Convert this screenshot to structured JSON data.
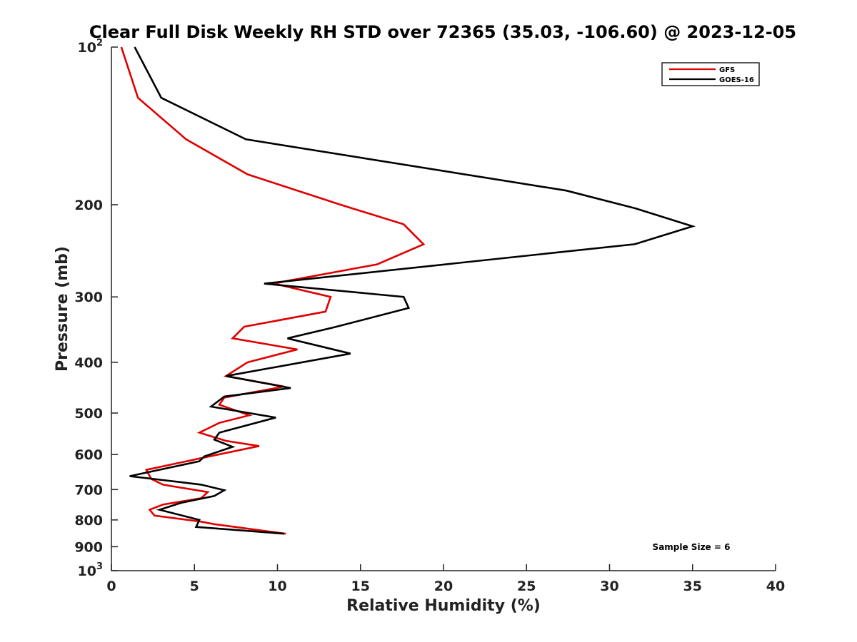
{
  "chart_data": {
    "type": "line",
    "title": "Clear Full Disk Weekly RH STD over 72365 (35.03, -106.60) @ 2023-12-05",
    "xlabel": "Relative Humidity (%)",
    "ylabel": "Pressure (mb)",
    "xlim": [
      0,
      40
    ],
    "ylim": [
      100,
      1000
    ],
    "yscale": "log",
    "y_reversed": true,
    "grid": false,
    "legend_position": "top-right",
    "annotation": "Sample Size = 6",
    "x_ticks": [
      "0",
      "5",
      "10",
      "15",
      "20",
      "25",
      "30",
      "35",
      "40"
    ],
    "y_ticks": [
      {
        "value": 100,
        "label": "10",
        "sup": "2"
      },
      {
        "value": 200,
        "label": "200",
        "sup": ""
      },
      {
        "value": 300,
        "label": "300",
        "sup": ""
      },
      {
        "value": 400,
        "label": "400",
        "sup": ""
      },
      {
        "value": 500,
        "label": "500",
        "sup": ""
      },
      {
        "value": 600,
        "label": "600",
        "sup": ""
      },
      {
        "value": 700,
        "label": "700",
        "sup": ""
      },
      {
        "value": 800,
        "label": "800",
        "sup": ""
      },
      {
        "value": 900,
        "label": "900",
        "sup": ""
      },
      {
        "value": 1000,
        "label": "10",
        "sup": "3"
      }
    ],
    "series": [
      {
        "name": "GFS",
        "color": "#e00000",
        "points": [
          [
            0.6,
            100
          ],
          [
            1.6,
            125
          ],
          [
            4.5,
            150
          ],
          [
            8.2,
            175
          ],
          [
            13.8,
            200
          ],
          [
            17.6,
            218
          ],
          [
            18.8,
            238
          ],
          [
            16.0,
            260
          ],
          [
            10.5,
            280
          ],
          [
            9.8,
            283
          ],
          [
            13.2,
            300
          ],
          [
            12.9,
            320
          ],
          [
            8.0,
            342
          ],
          [
            7.3,
            360
          ],
          [
            11.2,
            378
          ],
          [
            8.2,
            400
          ],
          [
            6.9,
            425
          ],
          [
            10.4,
            445
          ],
          [
            6.8,
            467
          ],
          [
            6.5,
            482
          ],
          [
            8.3,
            505
          ],
          [
            6.5,
            522
          ],
          [
            5.3,
            545
          ],
          [
            6.9,
            565
          ],
          [
            8.9,
            578
          ],
          [
            5.9,
            605
          ],
          [
            2.1,
            642
          ],
          [
            2.4,
            668
          ],
          [
            3.1,
            685
          ],
          [
            5.8,
            708
          ],
          [
            5.4,
            727
          ],
          [
            3.1,
            748
          ],
          [
            2.3,
            765
          ],
          [
            2.6,
            785
          ],
          [
            5.3,
            805
          ],
          [
            6.2,
            815
          ],
          [
            10.5,
            850
          ]
        ]
      },
      {
        "name": "GOES-16",
        "color": "#000000",
        "points": [
          [
            1.4,
            100
          ],
          [
            3.0,
            125
          ],
          [
            8.1,
            150
          ],
          [
            27.4,
            188
          ],
          [
            31.5,
            203
          ],
          [
            35.0,
            220
          ],
          [
            31.5,
            238
          ],
          [
            9.2,
            283
          ],
          [
            17.6,
            300
          ],
          [
            17.9,
            315
          ],
          [
            13.4,
            343
          ],
          [
            10.6,
            360
          ],
          [
            14.4,
            385
          ],
          [
            6.9,
            425
          ],
          [
            10.8,
            448
          ],
          [
            6.8,
            465
          ],
          [
            6.0,
            486
          ],
          [
            9.9,
            510
          ],
          [
            6.5,
            545
          ],
          [
            6.2,
            562
          ],
          [
            7.3,
            580
          ],
          [
            5.6,
            605
          ],
          [
            5.3,
            618
          ],
          [
            1.1,
            660
          ],
          [
            5.4,
            685
          ],
          [
            6.8,
            702
          ],
          [
            6.2,
            720
          ],
          [
            4.2,
            742
          ],
          [
            2.9,
            765
          ],
          [
            5.3,
            800
          ],
          [
            5.1,
            825
          ],
          [
            10.4,
            850
          ]
        ]
      }
    ]
  }
}
